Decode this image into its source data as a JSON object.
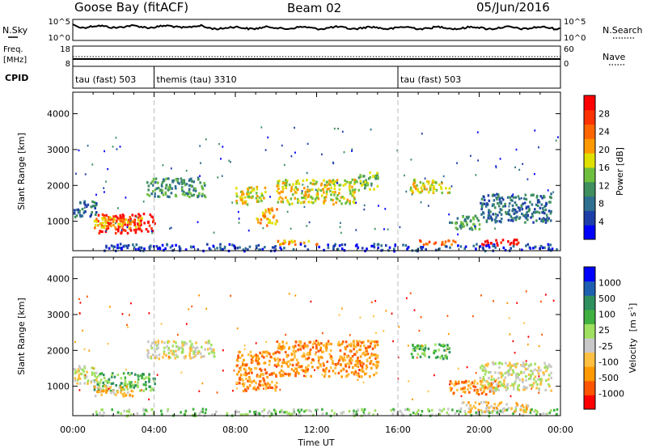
{
  "header": {
    "station": "Goose Bay (fitACF)",
    "beam": "Beam 02",
    "date": "05/Jun/2016"
  },
  "nsky_panel": {
    "left_label": "N.Sky",
    "right_label": "N.Search",
    "left_ticks": [
      "10^5",
      "10^0"
    ],
    "right_ticks": [
      "10^5",
      "10^0"
    ]
  },
  "freq_panel": {
    "left_label_1": "Freq.",
    "left_label_2": "[MHz]",
    "right_label": "Nave",
    "left_ticks": [
      "18",
      "8"
    ],
    "right_ticks": [
      "60",
      "0"
    ]
  },
  "cpid_panel": {
    "label": "CPID",
    "modes": [
      {
        "name": "tau (fast) 503",
        "start_h": 0,
        "end_h": 4
      },
      {
        "name": "themis (tau) 3310",
        "start_h": 4,
        "end_h": 16
      },
      {
        "name": "tau (fast) 503",
        "start_h": 16,
        "end_h": 24
      }
    ]
  },
  "colors": {
    "power_scale": [
      "#0000ff",
      "#1e3fa8",
      "#2f6f8f",
      "#3f8f5f",
      "#6fbf3f",
      "#e0e000",
      "#ff9900",
      "#ff6600",
      "#ff3300",
      "#ff0000"
    ],
    "velocity_scale": [
      "#ff0000",
      "#ff5500",
      "#ff9900",
      "#ffbf40",
      "#c8c8c8",
      "#a0e060",
      "#40b040",
      "#2f8f5f",
      "#1e5fb0",
      "#0000ff"
    ],
    "ground_scatter": "#c0c0c0"
  },
  "power_colorbar": {
    "title": "Power [dB]",
    "ticks": [
      "4",
      "8",
      "12",
      "16",
      "20",
      "24",
      "28"
    ]
  },
  "velocity_colorbar": {
    "title": "Velocity",
    "title_unit": "[m s",
    "title_exp": "-1",
    "title_close": "]",
    "ticks": [
      "1000",
      "500",
      "100",
      "25",
      "-25",
      "-100",
      "-500",
      "-1000"
    ]
  },
  "chart_data": [
    {
      "type": "heatmap",
      "name": "power",
      "ylabel": "Slant Range [km]",
      "yticks": [
        1000,
        2000,
        3000,
        4000
      ],
      "ylim": [
        180,
        4600
      ],
      "xlim": [
        0,
        24
      ],
      "dashed_lines_h": [
        4,
        16
      ],
      "regions": [
        {
          "t0": 1.2,
          "t1": 4.0,
          "r0": 700,
          "r1": 1250,
          "level": 9
        },
        {
          "t0": 1.0,
          "t1": 3.4,
          "r0": 850,
          "r1": 1150,
          "level": 6
        },
        {
          "t0": 0.0,
          "t1": 1.2,
          "r0": 1150,
          "r1": 1600,
          "level": 2
        },
        {
          "t0": 3.6,
          "t1": 6.5,
          "r0": 1700,
          "r1": 2250,
          "level": 3
        },
        {
          "t0": 8.0,
          "t1": 9.5,
          "r0": 1500,
          "r1": 2000,
          "level": 5
        },
        {
          "t0": 9.0,
          "t1": 10.0,
          "r0": 900,
          "r1": 1400,
          "level": 6
        },
        {
          "t0": 10.0,
          "t1": 14.0,
          "r0": 1500,
          "r1": 2200,
          "level": 5
        },
        {
          "t0": 14.0,
          "t1": 15.0,
          "r0": 1900,
          "r1": 2400,
          "level": 4
        },
        {
          "t0": 16.5,
          "t1": 18.5,
          "r0": 1800,
          "r1": 2200,
          "level": 5
        },
        {
          "t0": 18.5,
          "t1": 20.0,
          "r0": 800,
          "r1": 1200,
          "level": 3
        },
        {
          "t0": 20.0,
          "t1": 23.5,
          "r0": 1000,
          "r1": 1800,
          "level": 2
        },
        {
          "t0": 10.0,
          "t1": 12.0,
          "r0": 380,
          "r1": 520,
          "level": 6
        },
        {
          "t0": 17.0,
          "t1": 19.0,
          "r0": 380,
          "r1": 500,
          "level": 7
        },
        {
          "t0": 20.0,
          "t1": 22.0,
          "r0": 360,
          "r1": 520,
          "level": 9
        }
      ],
      "near_range_band": {
        "t0": 1.5,
        "t1": 23.8,
        "r0": 200,
        "r1": 400,
        "level": 1
      }
    },
    {
      "type": "heatmap",
      "name": "velocity",
      "ylabel": "Slant Range [km]",
      "xlabel": "Time UT",
      "xticks": [
        "00:00",
        "04:00",
        "08:00",
        "12:00",
        "16:00",
        "20:00",
        "00:00"
      ],
      "yticks": [
        1000,
        2000,
        3000,
        4000
      ],
      "ylim": [
        180,
        4600
      ],
      "xlim": [
        0,
        24
      ],
      "dashed_lines_h": [
        4,
        16
      ],
      "regions": [
        {
          "t0": 1.0,
          "t1": 4.0,
          "r0": 900,
          "r1": 1400,
          "level": 6
        },
        {
          "t0": 1.0,
          "t1": 3.0,
          "r0": 750,
          "r1": 1050,
          "level": 3
        },
        {
          "t0": 0.0,
          "t1": 1.2,
          "r0": 1100,
          "r1": 1600,
          "level": 4
        },
        {
          "t0": 3.6,
          "t1": 7.0,
          "r0": 1800,
          "r1": 2300,
          "level": 4
        },
        {
          "t0": 8.0,
          "t1": 10.0,
          "r0": 900,
          "r1": 2000,
          "level": 2
        },
        {
          "t0": 10.0,
          "t1": 15.0,
          "r0": 1300,
          "r1": 2300,
          "level": 2
        },
        {
          "t0": 16.5,
          "t1": 18.5,
          "r0": 1800,
          "r1": 2200,
          "level": 6
        },
        {
          "t0": 18.5,
          "t1": 21.0,
          "r0": 800,
          "r1": 1200,
          "level": 2
        },
        {
          "t0": 20.0,
          "t1": 23.5,
          "r0": 900,
          "r1": 1700,
          "level": 4
        },
        {
          "t0": 19.0,
          "t1": 22.5,
          "r0": 300,
          "r1": 600,
          "level": 3
        }
      ],
      "near_range_band": {
        "t0": 1.0,
        "t1": 23.8,
        "r0": 200,
        "r1": 400,
        "level": 5
      }
    }
  ]
}
